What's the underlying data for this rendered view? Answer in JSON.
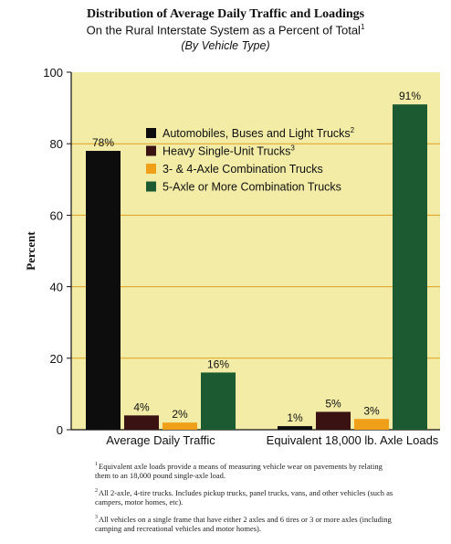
{
  "header": {
    "title": "Distribution of Average Daily Traffic and Loadings",
    "subtitle": "On the Rural Interstate System as a Percent of Total",
    "subtitle_marker": "1",
    "subtitle2": "(By Vehicle Type)"
  },
  "colors": {
    "plot_background": "#f2eca6",
    "gridline": "#e0a020",
    "automobiles": "#0d0d0d",
    "heavy_single_unit": "#3a1212",
    "combination_3_4_axle": "#f0a018",
    "combination_5_axle": "#1c5a32"
  },
  "chart_data": {
    "type": "bar",
    "title": "Distribution of Average Daily Traffic and Loadings",
    "ylabel": "Percent",
    "xlabel": "",
    "ylim": [
      0,
      100
    ],
    "yticks": [
      "0",
      "20",
      "40",
      "60",
      "80",
      "100"
    ],
    "grid": true,
    "legend_position": "upper-center",
    "categories": [
      "Average Daily Traffic",
      "Equivalent 18,000 lb. Axle Loads"
    ],
    "series": [
      {
        "name": "Automobiles, Buses and Light Trucks",
        "name_marker": "2",
        "color": "#0d0d0d",
        "values": [
          78,
          1
        ],
        "labels": [
          "78%",
          "1%"
        ]
      },
      {
        "name": "Heavy Single-Unit Trucks",
        "name_marker": "3",
        "color": "#3a1212",
        "values": [
          4,
          5
        ],
        "labels": [
          "4%",
          "5%"
        ]
      },
      {
        "name": "3- & 4-Axle Combination Trucks",
        "name_marker": "",
        "color": "#f0a018",
        "values": [
          2,
          3
        ],
        "labels": [
          "2%",
          "3%"
        ]
      },
      {
        "name": "5-Axle or More Combination Trucks",
        "name_marker": "",
        "color": "#1c5a32",
        "values": [
          16,
          91
        ],
        "labels": [
          "16%",
          "91%"
        ]
      }
    ]
  },
  "footnotes": [
    {
      "marker": "1",
      "text": "Equivalent axle loads provide a means of measuring vehicle wear on pavements by relating them to an 18,000 pound single-axle load."
    },
    {
      "marker": "2",
      "text": "All 2-axle, 4-tire trucks. Includes pickup trucks, panel trucks, vans, and other vehicles (such as campers, motor homes, etc)."
    },
    {
      "marker": "3",
      "text": "All vehicles on a single frame  that have either 2 axles and 6 tires or 3 or more axles (including camping and recreational vehicles and motor homes)."
    }
  ]
}
